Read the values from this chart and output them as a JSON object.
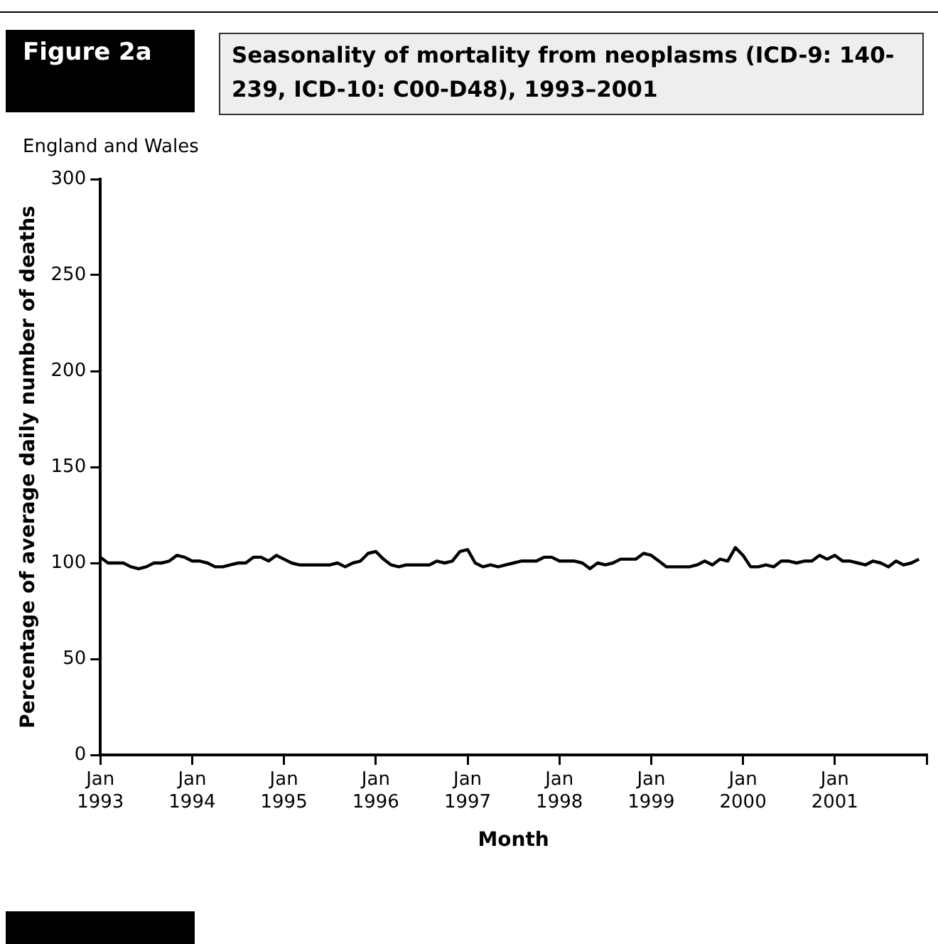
{
  "chart_data": {
    "type": "line",
    "title": "Seasonality of mortality from neoplasms (ICD-9: 140-239, ICD-10: C00-D48), 1993–2001",
    "subtitle": "England and Wales",
    "annotations": [
      "Figure 2a"
    ],
    "xlabel": "Month",
    "ylabel": "Percentage of average daily number of deaths",
    "x": [
      "1993-01",
      "1993-02",
      "1993-03",
      "1993-04",
      "1993-05",
      "1993-06",
      "1993-07",
      "1993-08",
      "1993-09",
      "1993-10",
      "1993-11",
      "1993-12",
      "1994-01",
      "1994-02",
      "1994-03",
      "1994-04",
      "1994-05",
      "1994-06",
      "1994-07",
      "1994-08",
      "1994-09",
      "1994-10",
      "1994-11",
      "1994-12",
      "1995-01",
      "1995-02",
      "1995-03",
      "1995-04",
      "1995-05",
      "1995-06",
      "1995-07",
      "1995-08",
      "1995-09",
      "1995-10",
      "1995-11",
      "1995-12",
      "1996-01",
      "1996-02",
      "1996-03",
      "1996-04",
      "1996-05",
      "1996-06",
      "1996-07",
      "1996-08",
      "1996-09",
      "1996-10",
      "1996-11",
      "1996-12",
      "1997-01",
      "1997-02",
      "1997-03",
      "1997-04",
      "1997-05",
      "1997-06",
      "1997-07",
      "1997-08",
      "1997-09",
      "1997-10",
      "1997-11",
      "1997-12",
      "1998-01",
      "1998-02",
      "1998-03",
      "1998-04",
      "1998-05",
      "1998-06",
      "1998-07",
      "1998-08",
      "1998-09",
      "1998-10",
      "1998-11",
      "1998-12",
      "1999-01",
      "1999-02",
      "1999-03",
      "1999-04",
      "1999-05",
      "1999-06",
      "1999-07",
      "1999-08",
      "1999-09",
      "1999-10",
      "1999-11",
      "1999-12",
      "2000-01",
      "2000-02",
      "2000-03",
      "2000-04",
      "2000-05",
      "2000-06",
      "2000-07",
      "2000-08",
      "2000-09",
      "2000-10",
      "2000-11",
      "2000-12",
      "2001-01",
      "2001-02",
      "2001-03",
      "2001-04",
      "2001-05",
      "2001-06",
      "2001-07",
      "2001-08",
      "2001-09",
      "2001-10",
      "2001-11",
      "2001-12"
    ],
    "series": [
      {
        "color": "#000000",
        "values": [
          103,
          100,
          100,
          100,
          98,
          97,
          98,
          100,
          100,
          101,
          104,
          103,
          101,
          101,
          100,
          98,
          98,
          99,
          100,
          100,
          103,
          103,
          101,
          104,
          102,
          100,
          99,
          99,
          99,
          99,
          99,
          100,
          98,
          100,
          101,
          105,
          106,
          102,
          99,
          98,
          99,
          99,
          99,
          99,
          101,
          100,
          101,
          106,
          107,
          100,
          98,
          99,
          98,
          99,
          100,
          101,
          101,
          101,
          103,
          103,
          101,
          101,
          101,
          100,
          97,
          100,
          99,
          100,
          102,
          102,
          102,
          105,
          104,
          101,
          98,
          98,
          98,
          98,
          99,
          101,
          99,
          102,
          101,
          108,
          104,
          98,
          98,
          99,
          98,
          101,
          101,
          100,
          101,
          101,
          104,
          102,
          104,
          101,
          101,
          100,
          99,
          101,
          100,
          98,
          101,
          99,
          100,
          102
        ]
      }
    ],
    "xlim": [
      "1993-01",
      "2002-01"
    ],
    "xticks": [
      {
        "value": "1993-01",
        "label": "Jan 1993"
      },
      {
        "value": "1994-01",
        "label": "Jan 1994"
      },
      {
        "value": "1995-01",
        "label": "Jan 1995"
      },
      {
        "value": "1996-01",
        "label": "Jan 1996"
      },
      {
        "value": "1997-01",
        "label": "Jan 1997"
      },
      {
        "value": "1998-01",
        "label": "Jan 1998"
      },
      {
        "value": "1999-01",
        "label": "Jan 1999"
      },
      {
        "value": "2000-01",
        "label": "Jan 2000"
      },
      {
        "value": "2001-01",
        "label": "Jan 2001"
      },
      {
        "value": "2002-01",
        "label": null
      }
    ],
    "ylim": [
      0,
      300
    ],
    "yticks": [
      0,
      50,
      100,
      150,
      200,
      250,
      300
    ],
    "grid": false,
    "legend": false,
    "marker": "none",
    "line_style": "solid"
  }
}
